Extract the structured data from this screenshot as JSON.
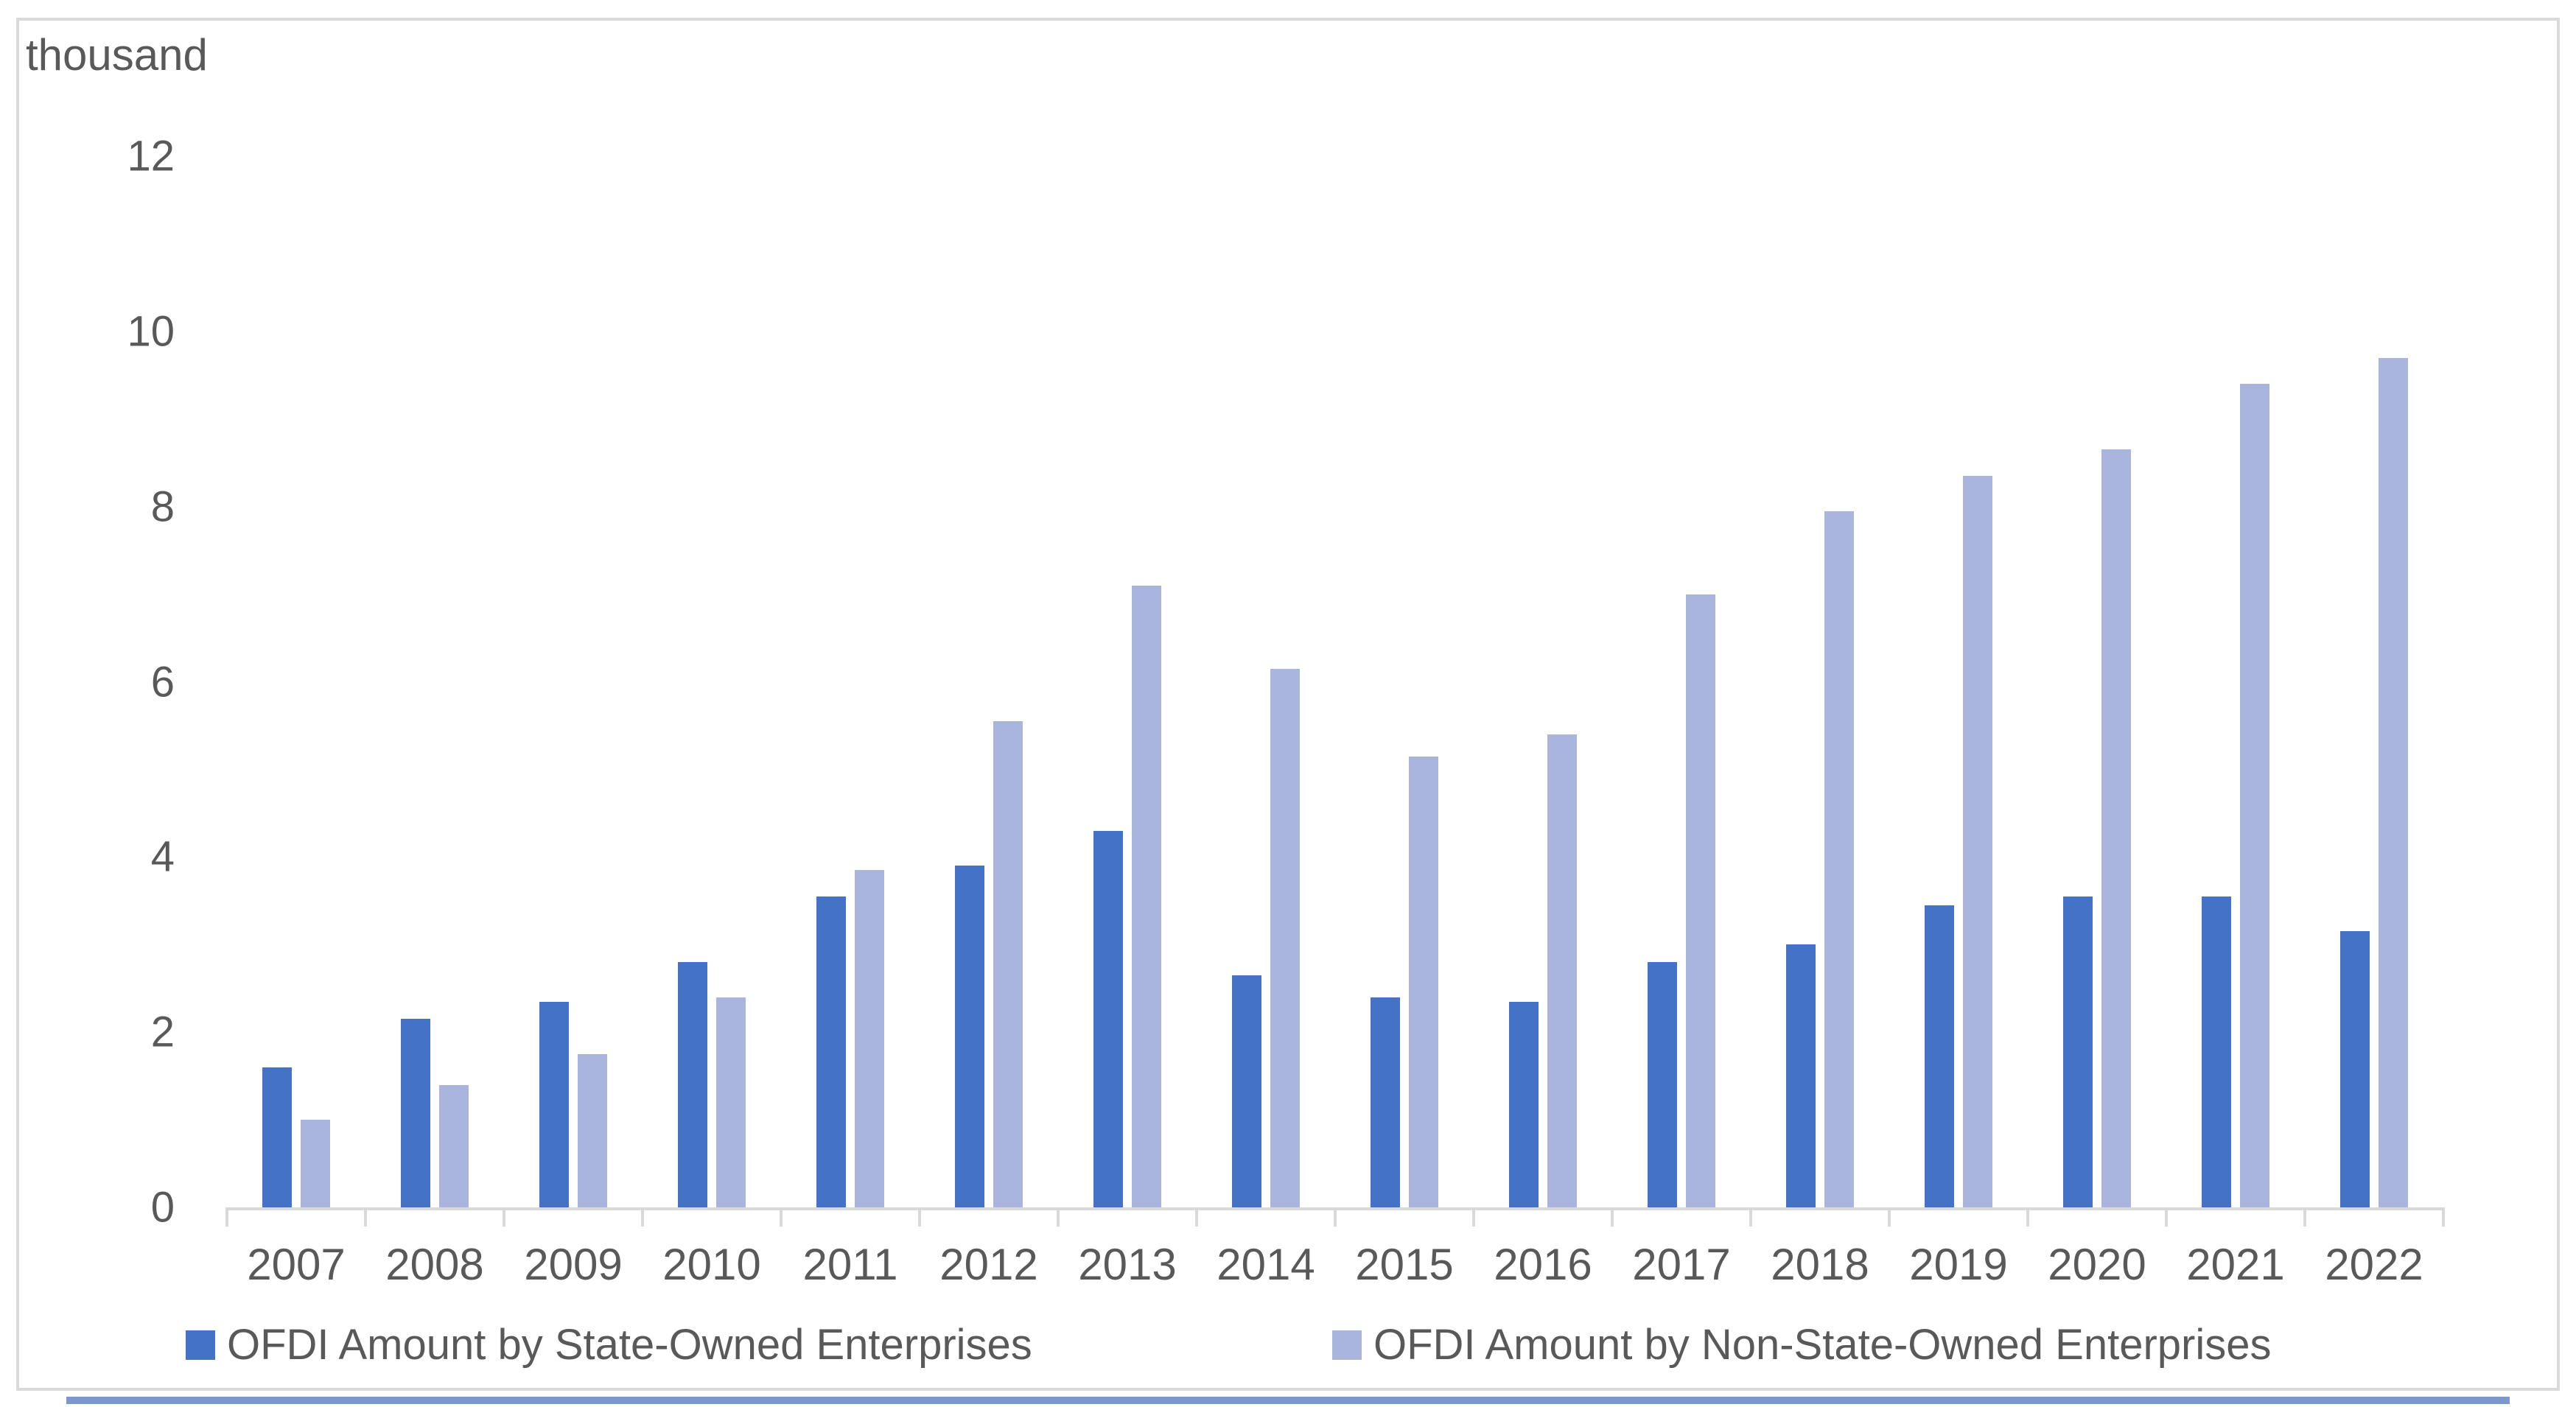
{
  "chart_data": {
    "type": "bar",
    "title": "",
    "unit_label": "thousand",
    "categories": [
      "2007",
      "2008",
      "2009",
      "2010",
      "2011",
      "2012",
      "2013",
      "2014",
      "2015",
      "2016",
      "2017",
      "2018",
      "2019",
      "2020",
      "2021",
      "2022"
    ],
    "series": [
      {
        "name": "OFDI Amount by State-Owned Enterprises",
        "color": "#4472C4",
        "values": [
          1.6,
          2.15,
          2.35,
          2.8,
          3.55,
          3.9,
          4.3,
          2.65,
          2.4,
          2.35,
          2.8,
          3.0,
          3.45,
          3.55,
          3.55,
          3.15
        ]
      },
      {
        "name": "OFDI Amount by Non-State-Owned Enterprises",
        "color": "#A9B5DC",
        "values": [
          1.0,
          1.4,
          1.75,
          2.4,
          3.85,
          5.55,
          7.1,
          6.15,
          5.15,
          5.4,
          7.0,
          7.95,
          8.35,
          8.65,
          9.4,
          9.7
        ]
      }
    ],
    "ylim": [
      0,
      12
    ],
    "ytick_step": 2,
    "yticks": [
      "0",
      "2",
      "4",
      "6",
      "8",
      "10",
      "12"
    ],
    "xlabel": "",
    "ylabel": "",
    "grid": false,
    "legend_position": "bottom",
    "axis_color": "#d9d9d9",
    "text_color": "#595959"
  }
}
